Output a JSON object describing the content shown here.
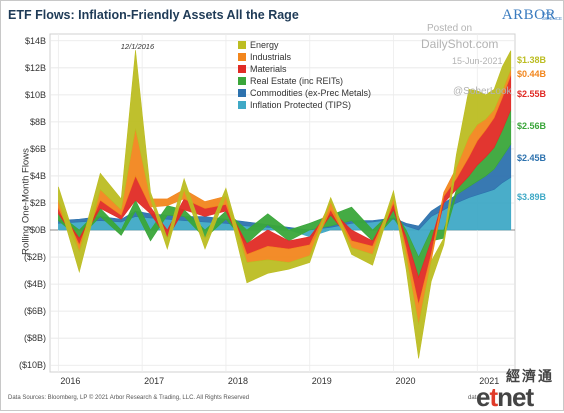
{
  "header": {
    "title": "ETF Flows: Inflation-Friendly Assets All the Rage",
    "logo": "ARBOR",
    "logo_sub": "DATA SCIENCE"
  },
  "watermark": {
    "line1": "Posted on",
    "line2": "DailyShot.com",
    "line3": "15-Jun-2021",
    "line4": "@SoberLook"
  },
  "footer": {
    "source": "Data Sources: Bloomberg, LP © 2021 Arbor Research & Trading, LLC. All Rights Reserved",
    "source_right": "data",
    "brand_cn": "經濟通",
    "brand_e1": "e",
    "brand_e2": "t",
    "brand_e3": "net"
  },
  "chart_data": {
    "type": "area",
    "stacked": true,
    "ylabel": "Rolling One-Month Flows",
    "xlabel": "",
    "ylim": [
      -10.5,
      14.5
    ],
    "yticks": [
      14,
      12,
      10,
      8,
      6,
      4,
      2,
      0,
      -2,
      -4,
      -6,
      -8,
      -10
    ],
    "ytick_labels": [
      "$14B",
      "$12B",
      "$10B",
      "$8B",
      "$6B",
      "$4B",
      "$2B",
      "$0B",
      "($2B)",
      "($4B)",
      "($6B)",
      "($8B)",
      "($10B)"
    ],
    "xlim": [
      2015.9,
      2021.45
    ],
    "xticks": [
      2016,
      2017,
      2018,
      2019,
      2020,
      2021
    ],
    "xtick_labels": [
      "2016",
      "2017",
      "2018",
      "2019",
      "2020",
      "2021"
    ],
    "annotation": {
      "text": "12/1/2016",
      "x": 2016.92,
      "y": 13.4
    },
    "legend_position": "top-center",
    "x": [
      2016.0,
      2016.25,
      2016.5,
      2016.75,
      2016.92,
      2017.1,
      2017.3,
      2017.5,
      2017.75,
      2018.0,
      2018.25,
      2018.5,
      2018.75,
      2019.0,
      2019.25,
      2019.5,
      2019.75,
      2020.0,
      2020.15,
      2020.3,
      2020.45,
      2020.6,
      2020.75,
      2020.9,
      2021.0,
      2021.1,
      2021.2,
      2021.3,
      2021.4
    ],
    "series": [
      {
        "name": "Inflation Protected (TIPS)",
        "color": "#3fa9c6",
        "end_label": "$3.89B",
        "values": [
          0.5,
          0.6,
          0.7,
          0.6,
          1.0,
          0.9,
          0.8,
          0.7,
          0.6,
          0.5,
          0.3,
          0.2,
          0.1,
          -0.5,
          0.2,
          0.5,
          0.6,
          0.8,
          0.3,
          -2.0,
          1.0,
          1.5,
          2.0,
          2.4,
          2.6,
          2.8,
          3.0,
          3.5,
          3.89
        ]
      },
      {
        "name": "Commodities (ex-Prec Metals)",
        "color": "#2d72ae",
        "end_label": "$2.45B",
        "values": [
          0.2,
          0.2,
          0.3,
          0.2,
          0.4,
          0.3,
          0.3,
          0.3,
          0.4,
          0.3,
          0.3,
          0.2,
          0.1,
          0.0,
          0.1,
          0.2,
          0.1,
          0.1,
          0.2,
          0.3,
          0.4,
          0.5,
          0.6,
          0.8,
          1.0,
          1.2,
          1.5,
          1.9,
          2.45
        ]
      },
      {
        "name": "Real Estate (inc REITs)",
        "color": "#3aa63a",
        "end_label": "$2.56B",
        "values": [
          0.5,
          -0.6,
          0.6,
          -0.4,
          0.8,
          -0.8,
          0.7,
          0.5,
          -0.6,
          0.6,
          -1.0,
          0.8,
          -0.8,
          0.5,
          0.8,
          1.0,
          -0.8,
          0.6,
          -0.5,
          -1.5,
          -0.8,
          -0.6,
          0.4,
          0.8,
          1.2,
          1.4,
          1.6,
          2.0,
          2.56
        ]
      },
      {
        "name": "Materials",
        "color": "#e02b25",
        "end_label": "$2.55B",
        "values": [
          0.4,
          -0.5,
          0.6,
          0.3,
          1.8,
          0.5,
          -0.6,
          0.8,
          0.6,
          0.5,
          -0.8,
          -1.2,
          -0.6,
          -0.6,
          0.4,
          -0.8,
          -0.4,
          0.5,
          -0.8,
          -2.0,
          -1.0,
          0.5,
          0.8,
          1.4,
          1.8,
          2.0,
          2.2,
          2.4,
          2.55
        ]
      },
      {
        "name": "Industrials",
        "color": "#f2861d",
        "end_label": "$0.44B",
        "values": [
          0.6,
          -0.5,
          0.8,
          0.4,
          3.5,
          0.6,
          0.5,
          0.7,
          0.5,
          0.6,
          -0.6,
          -1.0,
          -1.0,
          -0.8,
          0.6,
          -0.5,
          -0.6,
          0.4,
          -0.6,
          -1.5,
          -0.5,
          0.3,
          0.8,
          1.5,
          1.2,
          0.8,
          0.6,
          0.5,
          0.44
        ]
      },
      {
        "name": "Energy",
        "color": "#bcbd22",
        "end_label": "$1.38B",
        "values": [
          1.0,
          -1.5,
          1.2,
          0.8,
          5.8,
          0.5,
          -0.8,
          0.8,
          -0.8,
          0.6,
          -1.5,
          -1.0,
          -0.5,
          -0.5,
          0.3,
          -0.5,
          -0.8,
          0.5,
          -1.0,
          -2.5,
          -1.5,
          -0.5,
          1.0,
          3.5,
          2.5,
          1.8,
          1.5,
          1.8,
          1.38
        ]
      }
    ]
  }
}
